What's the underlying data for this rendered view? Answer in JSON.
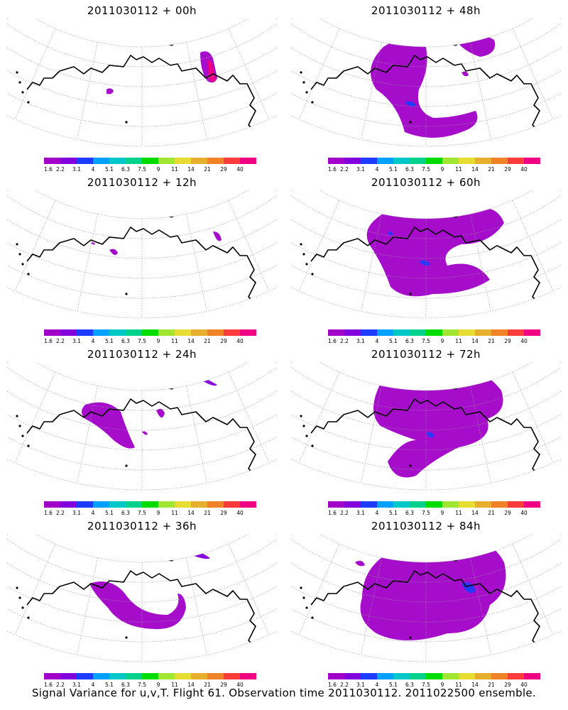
{
  "panels": [
    {
      "title": "2011030112 + 00h"
    },
    {
      "title": "2011030112 + 48h"
    },
    {
      "title": "2011030112 + 12h"
    },
    {
      "title": "2011030112 + 60h"
    },
    {
      "title": "2011030112 + 24h"
    },
    {
      "title": "2011030112 + 72h"
    },
    {
      "title": "2011030112 + 36h"
    },
    {
      "title": "2011030112 + 84h"
    }
  ],
  "colorbar": {
    "labels": [
      "1.6",
      "2.2",
      "3.1",
      "4",
      "5.1",
      "6.3",
      "7.5",
      "9",
      "11",
      "14",
      "21",
      "29",
      "40"
    ],
    "colors": [
      "#a000c8",
      "#8200dc",
      "#1e3cff",
      "#00a0ff",
      "#00c8c8",
      "#00d28c",
      "#00dc00",
      "#a0e632",
      "#e6dc32",
      "#e6af2d",
      "#f08228",
      "#fa3c3c",
      "#f00082"
    ]
  },
  "footer": "Signal Variance for u,v,T. Flight 61. Observation time 2011030112. 2011022500 ensemble."
}
